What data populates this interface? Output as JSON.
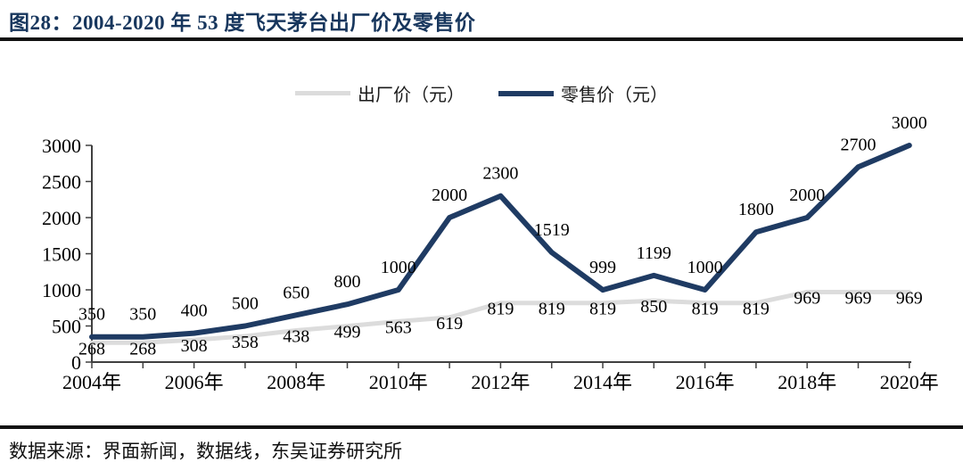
{
  "header": {
    "title": "图28：2004-2020 年 53 度飞天茅台出厂价及零售价"
  },
  "footer": {
    "source": "数据来源：界面新闻，数据线，东吴证券研究所"
  },
  "colors": {
    "title_navy": "#17365d",
    "retail_line": "#1f3b63",
    "factory_line": "#dcdcdc",
    "axis": "#404040",
    "data_label": "#000000",
    "rule": "#111111"
  },
  "chart_data": {
    "type": "line",
    "x": [
      2004,
      2005,
      2006,
      2007,
      2008,
      2009,
      2010,
      2011,
      2012,
      2013,
      2014,
      2015,
      2016,
      2017,
      2018,
      2019,
      2020
    ],
    "x_tick_labels": [
      "2004年",
      "2006年",
      "2008年",
      "2010年",
      "2012年",
      "2014年",
      "2016年",
      "2018年",
      "2020年"
    ],
    "series": [
      {
        "name": "出厂价（元）",
        "color": "#dcdcdc",
        "label_position": "below",
        "values": [
          268,
          268,
          308,
          358,
          438,
          499,
          563,
          619,
          819,
          819,
          819,
          850,
          819,
          819,
          969,
          969,
          969
        ]
      },
      {
        "name": "零售价（元）",
        "color": "#1f3b63",
        "label_position": "above",
        "values": [
          350,
          350,
          400,
          500,
          650,
          800,
          1000,
          2000,
          2300,
          1519,
          999,
          1199,
          1000,
          1800,
          2000,
          2700,
          3000
        ]
      }
    ],
    "ylim": [
      0,
      3000
    ],
    "yticks": [
      0,
      500,
      1000,
      1500,
      2000,
      2500,
      3000
    ],
    "legend_position": "top-center",
    "grid": false,
    "data_labels": true
  }
}
